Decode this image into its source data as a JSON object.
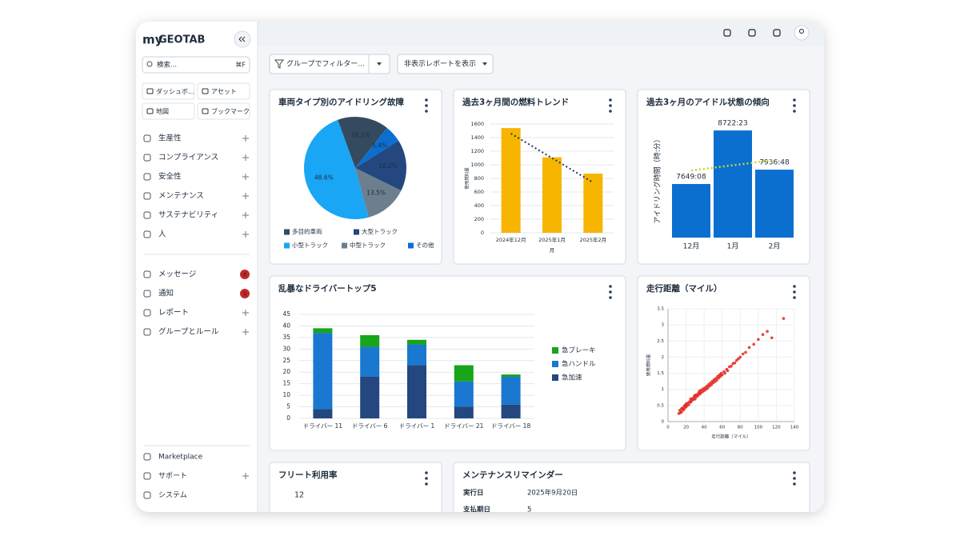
{
  "app": {
    "logo_my": "my",
    "logo_brand": "GEOTAB",
    "search_placeholder": "検索...",
    "search_shortcut": "⌘F",
    "quick_links": [
      "ダッシュボ...",
      "アセット",
      "地図",
      "ブックマーク"
    ],
    "nav": [
      "生産性",
      "コンプライアンス",
      "安全性",
      "メンテナンス",
      "サステナビリティ",
      "人"
    ],
    "nav2": [
      {
        "label": "メッセージ",
        "badge": 8
      },
      {
        "label": "通知",
        "badge": 9
      },
      {
        "label": "レポート"
      },
      {
        "label": "グループとルール"
      }
    ],
    "footer": [
      "Marketplace",
      "サポート",
      "システム"
    ]
  },
  "toolbar": {
    "group_filter": "グループでフィルター...",
    "hidden_reports": "非表示レポートを表示"
  },
  "chart_data": [
    {
      "type": "pie",
      "title": "車両タイプ別のアイドリング故障",
      "categories": [
        "多目的車両",
        "大型トラック",
        "小型トラック",
        "中型トラック",
        "その他"
      ],
      "values": [
        16.2,
        16.2,
        48.6,
        13.5,
        5.4
      ],
      "value_labels": [
        "16.2%",
        "16.2%",
        "48.6%",
        "13.5%",
        "5.4%"
      ],
      "colors": [
        "#344a5f",
        "#24477f",
        "#19a6f4",
        "#6d7e8e",
        "#0b6fd0"
      ]
    },
    {
      "type": "bar",
      "title": "過去3ヶ月間の燃料トレンド",
      "categories": [
        "2024年12月",
        "2025年1月",
        "2025年2月"
      ],
      "values": [
        1540,
        1110,
        870
      ],
      "color": "#f7b500",
      "ylim": [
        0,
        1600
      ],
      "yticks": [
        0,
        200,
        400,
        600,
        800,
        1000,
        1200,
        1400,
        1600
      ],
      "grid": true,
      "y_label": "使用燃料量",
      "x_label": "月",
      "trendline": {
        "values": [
          1460,
          1100,
          740
        ],
        "color": "#1f3a5f"
      }
    },
    {
      "type": "bar",
      "title": "過去3ヶ月のアイドル状態の傾向",
      "categories": [
        "12月",
        "1月",
        "2月"
      ],
      "values": [
        7649.13,
        8722.38,
        7936.8
      ],
      "value_labels": [
        "7649:08",
        "8722:23",
        "7936:48"
      ],
      "color": "#0b6fd0",
      "ylim": [
        6575,
        8900
      ],
      "grid": false,
      "y_label": "アイドリング時間（時:分）",
      "trendline": {
        "values": [
          7920,
          8025,
          8130
        ],
        "color": "#c9d42a"
      }
    },
    {
      "type": "stacked_bar",
      "title": "乱暴なドライバートップ5",
      "categories": [
        "ドライバー 11",
        "ドライバー 6",
        "ドライバー 1",
        "ドライバー 21",
        "ドライバー 18"
      ],
      "series": [
        {
          "name": "急ブレーキ",
          "color": "#17a51a",
          "values": [
            2,
            5,
            2,
            7,
            1
          ]
        },
        {
          "name": "急ハンドル",
          "color": "#1a78d0",
          "values": [
            33,
            13,
            9,
            11,
            12
          ]
        },
        {
          "name": "急加速",
          "color": "#24477f",
          "values": [
            4,
            18,
            23,
            5,
            6
          ]
        }
      ],
      "ylim": [
        0,
        45
      ],
      "yticks": [
        0,
        5,
        10,
        15,
        20,
        25,
        30,
        35,
        40,
        45
      ],
      "grid": true,
      "legend": "right"
    },
    {
      "type": "scatter",
      "title": "走行距離（マイル）",
      "x_label": "走行距離（マイル）",
      "y_label": "使用燃料量",
      "color": "#e3261f",
      "xlim": [
        0,
        140
      ],
      "xticks": [
        0,
        20,
        40,
        60,
        80,
        100,
        120,
        140
      ],
      "ylim": [
        0,
        3.5
      ],
      "yticks": [
        0,
        0.5,
        1,
        1.5,
        2,
        2.5,
        3,
        3.5
      ],
      "grid": true,
      "x": [
        12,
        13,
        14,
        15,
        15,
        16,
        17,
        18,
        18,
        19,
        20,
        20,
        21,
        22,
        23,
        24,
        25,
        25,
        26,
        27,
        28,
        29,
        30,
        30,
        31,
        32,
        33,
        34,
        35,
        35,
        36,
        37,
        38,
        39,
        40,
        41,
        42,
        43,
        44,
        45,
        46,
        47,
        48,
        49,
        50,
        51,
        52,
        53,
        54,
        55,
        56,
        57,
        58,
        59,
        60,
        62,
        63,
        65,
        66,
        68,
        70,
        72,
        74,
        76,
        78,
        80,
        83,
        86,
        90,
        95,
        100,
        105,
        110,
        115,
        128
      ],
      "values": [
        0.25,
        0.35,
        0.28,
        0.4,
        0.3,
        0.42,
        0.36,
        0.48,
        0.4,
        0.5,
        0.45,
        0.55,
        0.5,
        0.58,
        0.52,
        0.62,
        0.6,
        0.7,
        0.64,
        0.72,
        0.68,
        0.78,
        0.7,
        0.82,
        0.76,
        0.84,
        0.8,
        0.9,
        0.85,
        0.95,
        0.88,
        0.98,
        0.92,
        1.02,
        0.96,
        1.05,
        1.0,
        1.1,
        1.04,
        1.15,
        1.1,
        1.2,
        1.14,
        1.25,
        1.2,
        1.3,
        1.24,
        1.34,
        1.28,
        1.4,
        1.35,
        1.45,
        1.4,
        1.5,
        1.45,
        1.55,
        1.5,
        1.62,
        1.58,
        1.7,
        1.72,
        1.8,
        1.82,
        1.9,
        1.95,
        2.0,
        2.1,
        2.15,
        2.3,
        2.4,
        2.55,
        2.7,
        2.8,
        2.6,
        3.2
      ]
    }
  ],
  "fleet_utilization": {
    "title": "フリート利用率",
    "value": 12
  },
  "maintenance": {
    "title": "メンテナンスリマインダー",
    "rows": [
      [
        "実行日",
        "2025年9月20日"
      ],
      [
        "支払期日",
        5
      ]
    ]
  }
}
